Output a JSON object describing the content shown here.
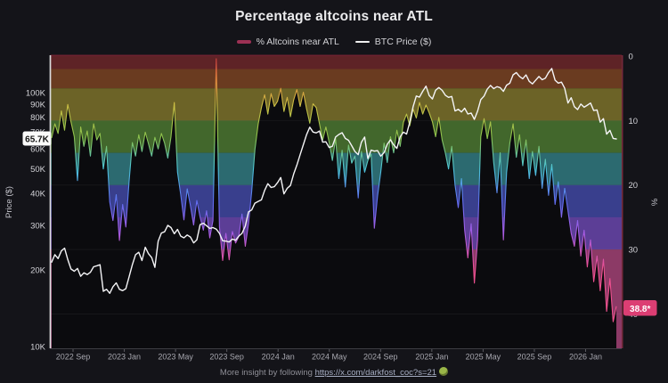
{
  "header": {
    "title": "Percentage altcoins near ATL"
  },
  "legend": {
    "alt_label": "% Altcoins near ATL",
    "btc_label": "BTC Price ($)",
    "alt_swatch_color": "#9c3154",
    "btc_swatch_color": "#f0f0f0"
  },
  "labels": {
    "btc_current": "65.7K",
    "btc_current_bg": "#fafafa",
    "btc_current_fg": "#141414",
    "alt_current": "38.8*",
    "alt_current_bg": "#dc3e73",
    "alt_current_fg": "#ffffff"
  },
  "footer": {
    "prefix": "More insight by following ",
    "link_text": "https://x.com/darkfost_coc?s=21",
    "emoji": "frog-emoji"
  },
  "chart_data": {
    "type": "line",
    "title": "Percentage altcoins near ATL",
    "cadence": "approx. weekly samples (4 per month) from Jul 2022 to Mar 2026",
    "x_axis": {
      "tick_labels": [
        "2022 Sep",
        "2023 Jan",
        "2023 May",
        "2023 Sep",
        "2024 Jan",
        "2024 May",
        "2024 Sep",
        "2025 Jan",
        "2025 May",
        "2025 Sep",
        "2026 Jan"
      ],
      "range": [
        "2022 Jul",
        "2026 Mar"
      ]
    },
    "price_axis": {
      "label": "Price ($)",
      "scale": "log",
      "ticks_k": [
        10,
        20,
        30,
        40,
        50,
        60,
        70,
        80,
        90,
        100
      ],
      "range_k": [
        10,
        140
      ],
      "side": "left"
    },
    "pct_axis": {
      "label": "%",
      "ticks": [
        0,
        10,
        20,
        30,
        40
      ],
      "range": [
        0,
        45.3
      ],
      "inverted": true,
      "side": "right"
    },
    "grid": "horizontal only, every 10%",
    "legend_position": "top center",
    "bands": [
      {
        "from_pct": 0,
        "to_pct": 2,
        "color": "#5e2326"
      },
      {
        "from_pct": 2,
        "to_pct": 5,
        "color": "#6a3b20"
      },
      {
        "from_pct": 5,
        "to_pct": 10,
        "color": "#6c6327"
      },
      {
        "from_pct": 10,
        "to_pct": 15,
        "color": "#42672c"
      },
      {
        "from_pct": 15,
        "to_pct": 20,
        "color": "#2c6a70"
      },
      {
        "from_pct": 20,
        "to_pct": 25,
        "color": "#393f8d"
      },
      {
        "from_pct": 25,
        "to_pct": 30,
        "color": "#5c3e96"
      },
      {
        "from_pct": 30,
        "to_pct": null,
        "color": "#8c3a66"
      }
    ],
    "line_gradient": [
      {
        "pct": 0,
        "color": "#c8403c"
      },
      {
        "pct": 1,
        "color": "#d14a40"
      },
      {
        "pct": 3.5,
        "color": "#dd803c"
      },
      {
        "pct": 7.5,
        "color": "#cfc044"
      },
      {
        "pct": 12.5,
        "color": "#8cc24c"
      },
      {
        "pct": 17.5,
        "color": "#4cc6da"
      },
      {
        "pct": 22.5,
        "color": "#5f6ef2"
      },
      {
        "pct": 27.5,
        "color": "#a85ce4"
      },
      {
        "pct": 33,
        "color": "#ee4f90"
      },
      {
        "pct": 45,
        "color": "#f2558f"
      }
    ],
    "series": [
      {
        "name": "% Altcoins near ATL",
        "axis": "pct",
        "line": "rainbow-gradient",
        "fill_below": "#0b0b0e",
        "values": [
          12.7,
          10.5,
          12.0,
          8.5,
          11.5,
          7.5,
          10.2,
          12.5,
          19.3,
          11.0,
          14.0,
          11.6,
          15.5,
          10.5,
          13.0,
          12.0,
          17.5,
          14.0,
          22.6,
          25.5,
          21.5,
          28.6,
          23.0,
          26.5,
          19.5,
          13.4,
          15.5,
          12.2,
          14.8,
          11.8,
          13.6,
          15.5,
          12.6,
          14.4,
          12.0,
          13.5,
          15.8,
          12.5,
          7.2,
          18.0,
          21.5,
          25.4,
          20.6,
          23.2,
          26.2,
          22.4,
          25.0,
          27.0,
          24.0,
          28.2,
          25.5,
          0.4,
          26.5,
          31.7,
          27.5,
          31.6,
          27.2,
          29.0,
          28.0,
          24.5,
          29.5,
          26.0,
          21.0,
          14.5,
          10.5,
          8.0,
          6.0,
          9.0,
          5.8,
          7.8,
          7.0,
          5.0,
          8.6,
          6.4,
          9.4,
          6.8,
          5.2,
          7.8,
          5.6,
          8.2,
          10.4,
          7.4,
          8.0,
          10.5,
          13.0,
          11.0,
          13.4,
          16.2,
          12.8,
          19.0,
          14.6,
          20.3,
          13.8,
          16.6,
          15.5,
          22.0,
          14.8,
          18.0,
          16.2,
          15.2,
          26.7,
          21.7,
          18.0,
          13.5,
          16.5,
          12.5,
          15.0,
          11.5,
          14.0,
          10.3,
          9.0,
          10.8,
          8.2,
          9.6,
          7.2,
          9.0,
          7.6,
          8.8,
          10.2,
          12.5,
          9.5,
          13.0,
          15.0,
          17.5,
          14.0,
          20.0,
          23.5,
          19.0,
          27.0,
          31.3,
          26.0,
          35.2,
          28.5,
          12.5,
          9.7,
          12.8,
          10.2,
          16.5,
          21.2,
          15.0,
          28.5,
          18.0,
          13.5,
          10.5,
          15.7,
          12.2,
          17.0,
          13.0,
          19.0,
          14.8,
          18.5,
          14.0,
          20.5,
          16.0,
          21.6,
          16.8,
          23.0,
          19.5,
          25.0,
          20.5,
          24.0,
          27.5,
          29.5,
          25.5,
          31.0,
          27.0,
          32.7,
          28.5,
          35.0,
          31.0,
          36.4,
          31.5,
          39.6,
          34.5,
          41.2,
          38.8
        ]
      },
      {
        "name": "BTC Price ($)",
        "axis": "price",
        "color": "#f4f4f6",
        "values_k": [
          21.5,
          23.0,
          22.2,
          23.8,
          24.4,
          22.0,
          20.2,
          19.8,
          20.3,
          18.9,
          19.5,
          19.2,
          19.6,
          20.6,
          20.8,
          21.0,
          16.5,
          16.8,
          16.2,
          17.2,
          17.8,
          16.8,
          16.6,
          16.9,
          18.8,
          21.0,
          23.0,
          23.5,
          21.8,
          24.6,
          23.2,
          22.4,
          20.5,
          26.0,
          28.0,
          28.3,
          30.0,
          29.4,
          27.8,
          28.9,
          27.2,
          26.8,
          27.5,
          27.0,
          25.6,
          26.3,
          30.2,
          30.6,
          29.9,
          29.2,
          29.4,
          29.0,
          27.9,
          26.1,
          26.0,
          25.8,
          26.5,
          26.2,
          27.2,
          27.9,
          29.8,
          33.9,
          34.5,
          36.7,
          37.3,
          37.8,
          41.2,
          43.8,
          42.3,
          42.6,
          44.2,
          46.3,
          39.9,
          42.0,
          43.1,
          47.8,
          51.8,
          57.0,
          62.4,
          68.3,
          73.1,
          69.9,
          69.4,
          70.6,
          63.8,
          64.0,
          60.8,
          61.5,
          66.9,
          68.4,
          69.5,
          66.0,
          64.9,
          61.8,
          58.6,
          57.0,
          63.8,
          66.8,
          55.0,
          59.4,
          58.8,
          59.1,
          56.2,
          58.0,
          62.6,
          65.2,
          62.3,
          60.3,
          67.0,
          69.9,
          68.7,
          76.5,
          88.0,
          97.0,
          96.0,
          101.2,
          106.1,
          97.4,
          94.4,
          102.2,
          104.7,
          102.1,
          97.7,
          95.8,
          96.6,
          84.7,
          86.0,
          83.9,
          86.8,
          82.4,
          83.1,
          78.5,
          84.5,
          93.8,
          97.0,
          103.2,
          106.8,
          103.7,
          105.6,
          104.6,
          101.1,
          107.0,
          108.9,
          117.5,
          119.9,
          115.8,
          113.4,
          117.4,
          110.8,
          108.2,
          111.9,
          115.7,
          112.4,
          114.0,
          120.0,
          124.5,
          112.0,
          109.0,
          110.0,
          104.0,
          91.0,
          95.5,
          88.0,
          85.8,
          90.2,
          87.6,
          89.2,
          91.0,
          85.0,
          85.5,
          76.5,
          79.0,
          68.6,
          71.0,
          66.0,
          65.7
        ]
      }
    ],
    "last_values": {
      "alt_pct": 38.8,
      "btc_k": 65.7
    }
  }
}
